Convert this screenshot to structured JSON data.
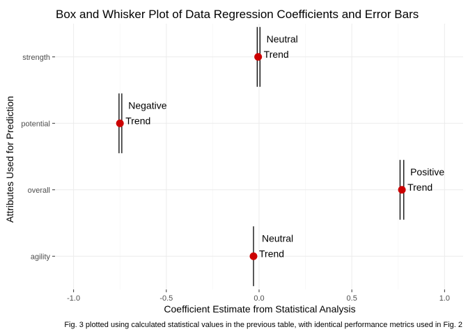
{
  "chart_data": {
    "type": "scatter",
    "title": "Box and Whisker Plot of Data Regression Coefficients and Error Bars",
    "xlabel": "Coefficient Estimate from Statistical Analysis",
    "ylabel": "Attributes Used for Prediction",
    "caption": "Fig. 3 plotted using calculated statistical values in the previous table, with identical performance metrics used in Fig. 2",
    "xlim": [
      -1.1,
      1.1
    ],
    "x_ticks": [
      "-1.0",
      "-0.5",
      "0.0",
      "0.5",
      "1.0"
    ],
    "categories": [
      "agility",
      "overall",
      "potential",
      "strength"
    ],
    "grid": true,
    "point_color": "#cc0000",
    "points": [
      {
        "category": "agility",
        "estimate": -0.03,
        "low": -0.03,
        "high": -0.03,
        "ci_low": -0.03,
        "ci_high": -0.03,
        "whisker_bottom": -0.45,
        "whisker_top": 0.45,
        "label_line1": "Neutral",
        "label_line2": "Trend"
      },
      {
        "category": "overall",
        "estimate": 0.77,
        "low": 0.76,
        "high": 0.78,
        "whisker_bottom": -0.45,
        "whisker_top": 0.45,
        "label_line1": "Positive",
        "label_line2": "Trend"
      },
      {
        "category": "potential",
        "estimate": -0.75,
        "low": -0.755,
        "high": -0.74,
        "whisker_bottom": -0.45,
        "whisker_top": 0.45,
        "label_line1": "Negative",
        "label_line2": "Trend"
      },
      {
        "category": "strength",
        "estimate": -0.005,
        "low": -0.01,
        "high": 0.005,
        "whisker_bottom": -0.45,
        "whisker_top": 0.45,
        "label_line1": "Neutral",
        "label_line2": "Trend"
      }
    ]
  }
}
